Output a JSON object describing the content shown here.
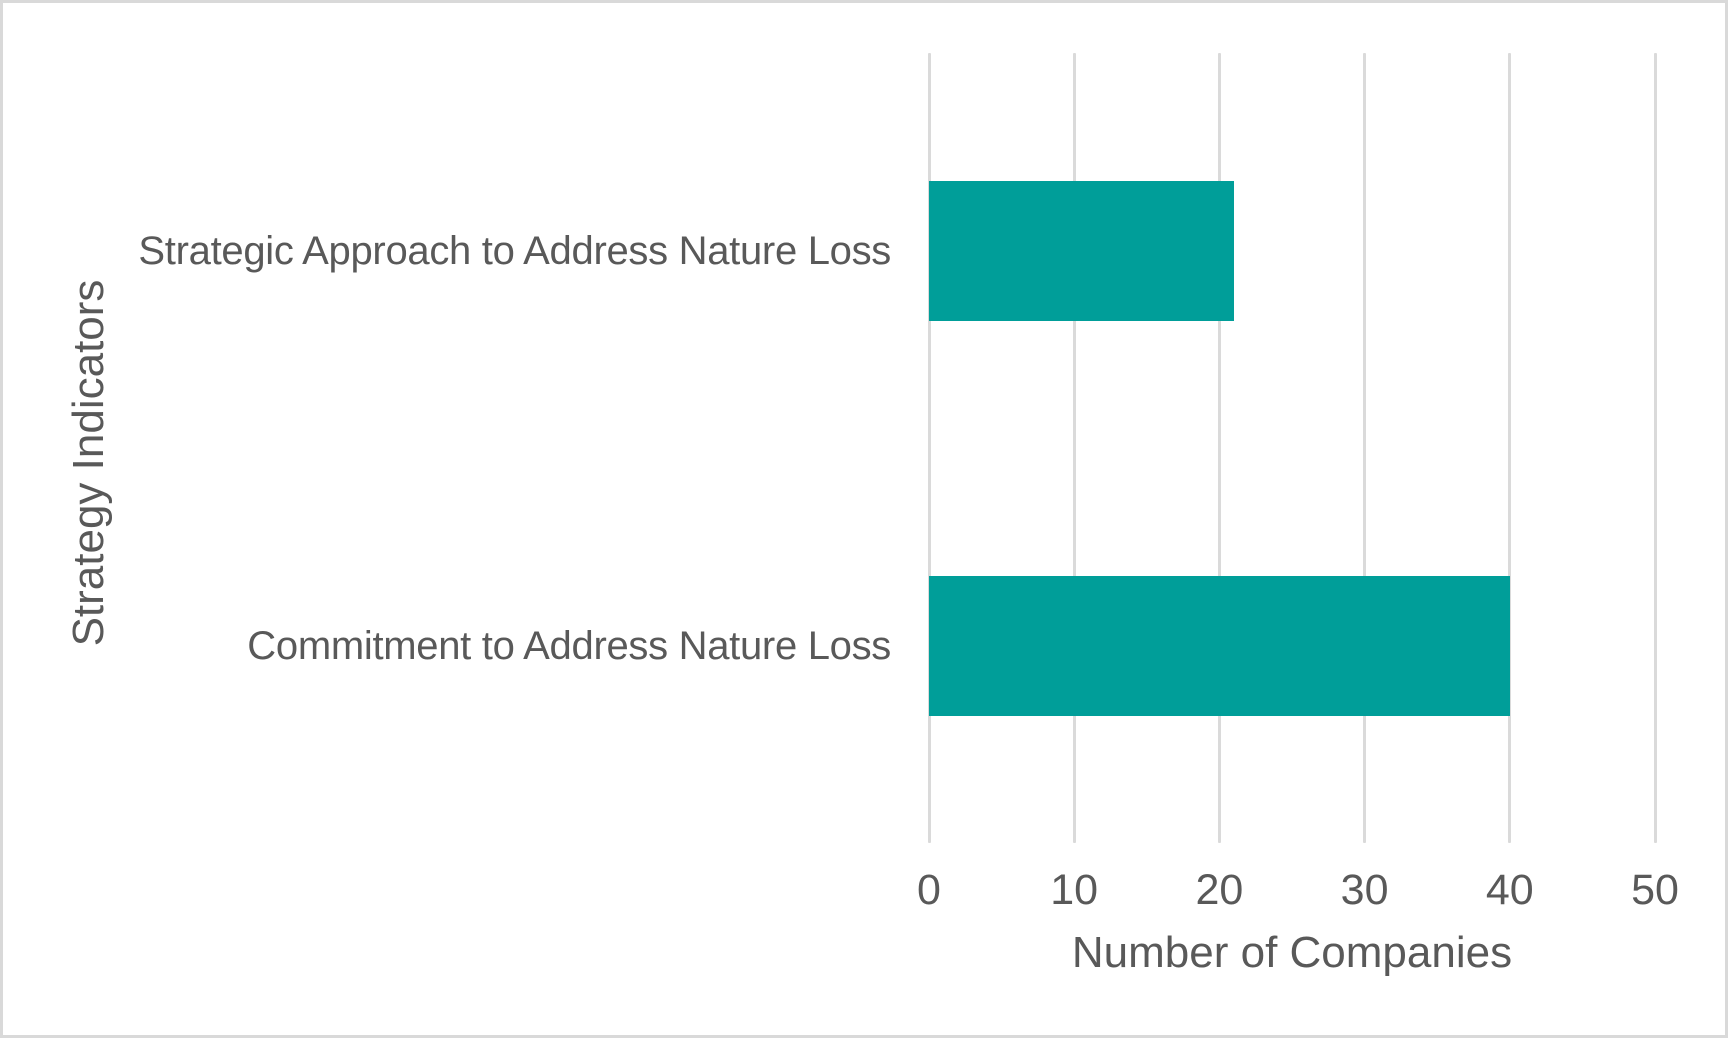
{
  "chart_data": {
    "type": "bar",
    "orientation": "horizontal",
    "title": "",
    "categories": [
      "Strategic Approach to Address Nature Loss",
      "Commitment to Address Nature Loss"
    ],
    "values": [
      21,
      40
    ],
    "xlabel": "Number of Companies",
    "ylabel": "Strategy Indicators",
    "xlim": [
      0,
      50
    ],
    "xticks": [
      0,
      10,
      20,
      30,
      40,
      50
    ],
    "grid": "vertical-gridlines-only",
    "legend": "none",
    "colors": {
      "bar": "#009E99",
      "gridline": "#DADADA",
      "text": "#595959",
      "frame_border": "#D9D9D9",
      "background": "#FFFFFF"
    }
  }
}
